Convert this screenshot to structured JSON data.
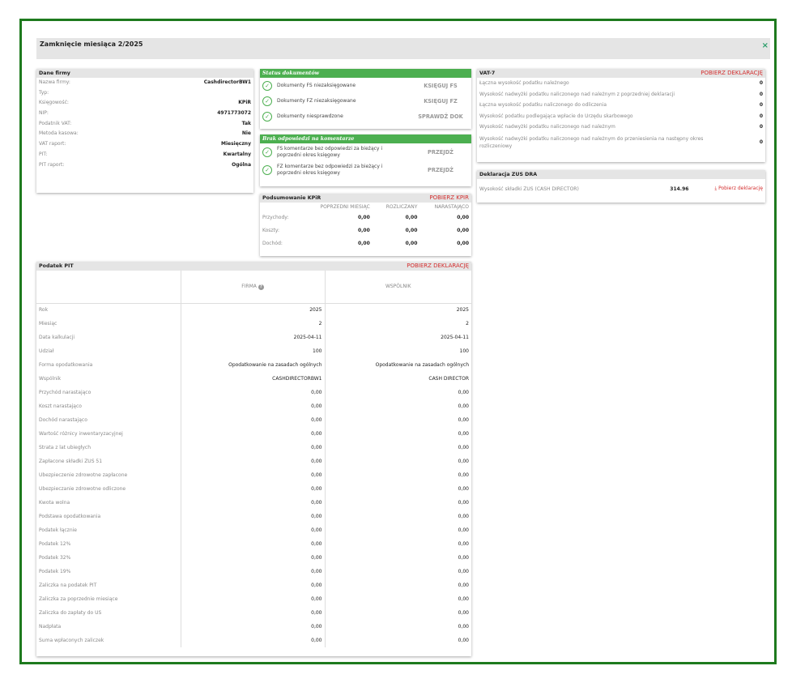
{
  "modal": {
    "title": "Zamknięcie miesiąca 2/2025",
    "close": "×"
  },
  "company": {
    "title": "Dane firmy",
    "rows": [
      {
        "k": "Nazwa firmy:",
        "v": "CashdirectorBW1"
      },
      {
        "k": "Typ:",
        "v": ""
      },
      {
        "k": "Księgowość:",
        "v": "KPiR"
      },
      {
        "k": "NIP:",
        "v": "4971773072"
      },
      {
        "k": "Podatnik VAT:",
        "v": "Tak"
      },
      {
        "k": "Metoda kasowa:",
        "v": "Nie"
      },
      {
        "k": "VAT raport:",
        "v": "Miesięczny"
      },
      {
        "k": "PIT:",
        "v": "Kwartalny"
      },
      {
        "k": "PIT raport:",
        "v": "Ogólna"
      }
    ]
  },
  "status": {
    "title": "Status dokumentów",
    "rows": [
      {
        "text": "Dokumenty FS niezaksięgowane",
        "action": "KSIĘGUJ FS"
      },
      {
        "text": "Dokumenty FZ niezaksięgowane",
        "action": "KSIĘGUJ FZ"
      },
      {
        "text": "Dokumenty niesprawdzone",
        "action": "SPRAWDŹ DOK"
      }
    ]
  },
  "comments": {
    "title": "Brak odpowiedzi na komentarze",
    "rows": [
      {
        "text": "FS komentarze bez odpowiedzi za bieżący i poprzedni okres księgowy",
        "action": "PRZEJDŹ"
      },
      {
        "text": "FZ komentarze bez odpowiedzi za bieżący i poprzedni okres księgowy",
        "action": "PRZEJDŹ"
      }
    ]
  },
  "kpir": {
    "title": "Podsumowanie KPiR",
    "link": "POBIERZ KPIR",
    "columns": [
      "POPRZEDNI MIESIĄC",
      "ROZLICZANY",
      "NARASTAJĄCO"
    ],
    "rows": [
      {
        "label": "Przychody:",
        "values": [
          "0,00",
          "0,00",
          "0,00"
        ]
      },
      {
        "label": "Koszty:",
        "values": [
          "0,00",
          "0,00",
          "0,00"
        ]
      },
      {
        "label": "Dochód:",
        "values": [
          "0,00",
          "0,00",
          "0,00"
        ]
      }
    ]
  },
  "vat": {
    "title": "VAT-7",
    "link": "POBIERZ DEKLARACJĘ",
    "rows": [
      {
        "k": "Łączna wysokość podatku należnego",
        "v": "0"
      },
      {
        "k": "Wysokość nadwyżki podatku naliczonego nad należnym z poprzedniej deklaracji",
        "v": "0"
      },
      {
        "k": "Łączna wysokość podatku naliczonego do odliczenia",
        "v": "0"
      },
      {
        "k": "Wysokość podatku podlegająca wpłacie do Urzędu skarbowego",
        "v": "0"
      },
      {
        "k": "Wysokość nadwyżki podatku naliczonego nad należnym",
        "v": "0"
      },
      {
        "k": "Wysokość nadwyżki podatku naliczonego nad należnym do przeniesienia na następny okres rozliczeniowy",
        "v": "0"
      }
    ]
  },
  "zus": {
    "title": "Deklaracja ZUS DRA",
    "label": "Wysokość składki ZUS (CASH DIRECTOR)",
    "value": "314.96",
    "link": "Pobierz deklarację"
  },
  "pit": {
    "title": "Podatek PIT",
    "link": "POBIERZ DEKLARACJĘ",
    "col_firma": "FIRMA",
    "col_wspolnik": "WSPÓLNIK",
    "rows": [
      {
        "k": "Rok",
        "a": "2025",
        "b": "2025"
      },
      {
        "k": "Miesiąc",
        "a": "2",
        "b": "2"
      },
      {
        "k": "Data kalkulacji",
        "a": "2025-04-11",
        "b": "2025-04-11"
      },
      {
        "k": "Udział",
        "a": "100",
        "b": "100"
      },
      {
        "k": "Forma opodatkowania",
        "a": "Opodatkowanie na zasadach ogólnych",
        "b": "Opodatkowanie na zasadach ogólnych"
      },
      {
        "k": "Wspólnik",
        "a": "CASHDIRECTORBW1",
        "b": "CASH DIRECTOR"
      },
      {
        "k": "Przychód narastająco",
        "a": "0,00",
        "b": "0,00"
      },
      {
        "k": "Koszt narastająco",
        "a": "0,00",
        "b": "0,00"
      },
      {
        "k": "Dochód narastająco",
        "a": "0,00",
        "b": "0,00"
      },
      {
        "k": "Wartość różnicy inwentaryzacyjnej",
        "a": "0,00",
        "b": "0,00"
      },
      {
        "k": "Strata z lat ubiegłych",
        "a": "0,00",
        "b": "0,00"
      },
      {
        "k": "Zapłacone składki ZUS 51",
        "a": "0,00",
        "b": "0,00"
      },
      {
        "k": "Ubezpieczenie zdrowotne zapłacone",
        "a": "0,00",
        "b": "0,00"
      },
      {
        "k": "Ubezpieczanie zdrowotne odliczone",
        "a": "0,00",
        "b": "0,00"
      },
      {
        "k": "Kwota wolna",
        "a": "0,00",
        "b": "0,00"
      },
      {
        "k": "Podstawa opodatkowania",
        "a": "0,00",
        "b": "0,00"
      },
      {
        "k": "Podatek łącznie",
        "a": "0,00",
        "b": "0,00"
      },
      {
        "k": "Podatek 12%",
        "a": "0,00",
        "b": "0,00"
      },
      {
        "k": "Podatek 32%",
        "a": "0,00",
        "b": "0,00"
      },
      {
        "k": "Podatek 19%",
        "a": "0,00",
        "b": "0,00"
      },
      {
        "k": "Zaliczka na podatek PIT",
        "a": "0,00",
        "b": "0,00"
      },
      {
        "k": "Zaliczka za poprzednie miesiące",
        "a": "0,00",
        "b": "0,00"
      },
      {
        "k": "Zaliczka do zapłaty do US",
        "a": "0,00",
        "b": "0,00"
      },
      {
        "k": "Nadpłata",
        "a": "0,00",
        "b": "0,00"
      },
      {
        "k": "Suma wpłaconych zaliczek",
        "a": "0,00",
        "b": "0,00"
      }
    ]
  }
}
